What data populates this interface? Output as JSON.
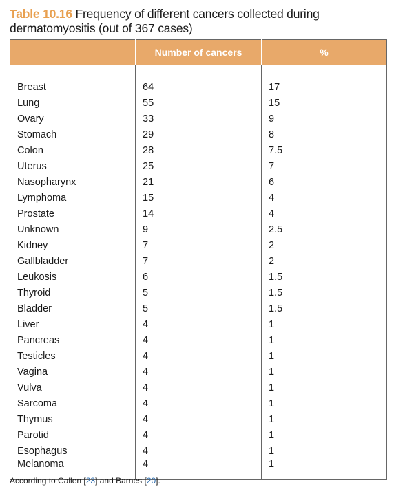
{
  "caption": {
    "label": "Table 10.16",
    "text": " Frequency of different cancers collected during dermatomyositis (out of 367 cases)"
  },
  "table": {
    "headers": [
      "",
      "Number of cancers",
      "%"
    ],
    "rows": [
      [
        "Breast",
        "64",
        "17"
      ],
      [
        "Lung",
        "55",
        "15"
      ],
      [
        "Ovary",
        "33",
        "9"
      ],
      [
        "Stomach",
        "29",
        "8"
      ],
      [
        "Colon",
        "28",
        "7.5"
      ],
      [
        "Uterus",
        "25",
        "7"
      ],
      [
        "Nasopharynx",
        "21",
        "6"
      ],
      [
        "Lymphoma",
        "15",
        "4"
      ],
      [
        "Prostate",
        "14",
        "4"
      ],
      [
        "Unknown",
        "9",
        "2.5"
      ],
      [
        "Kidney",
        "7",
        "2"
      ],
      [
        "Gallbladder",
        "7",
        "2"
      ],
      [
        "Leukosis",
        "6",
        "1.5"
      ],
      [
        "Thyroid",
        "5",
        "1.5"
      ],
      [
        "Bladder",
        "5",
        "1.5"
      ],
      [
        "Liver",
        "4",
        "1"
      ],
      [
        "Pancreas",
        "4",
        "1"
      ],
      [
        "Testicles",
        "4",
        "1"
      ],
      [
        "Vagina",
        "4",
        "1"
      ],
      [
        "Vulva",
        "4",
        "1"
      ],
      [
        "Sarcoma",
        "4",
        "1"
      ],
      [
        "Thymus",
        "4",
        "1"
      ],
      [
        "Parotid",
        "4",
        "1"
      ],
      [
        "Esophagus",
        "4",
        "1"
      ],
      [
        "Melanoma",
        "4",
        "1"
      ]
    ]
  },
  "footnote": {
    "prefix": "According to Callen [",
    "ref1": "23",
    "middle": "] and Barnes [",
    "ref2": "20",
    "suffix": "]."
  }
}
